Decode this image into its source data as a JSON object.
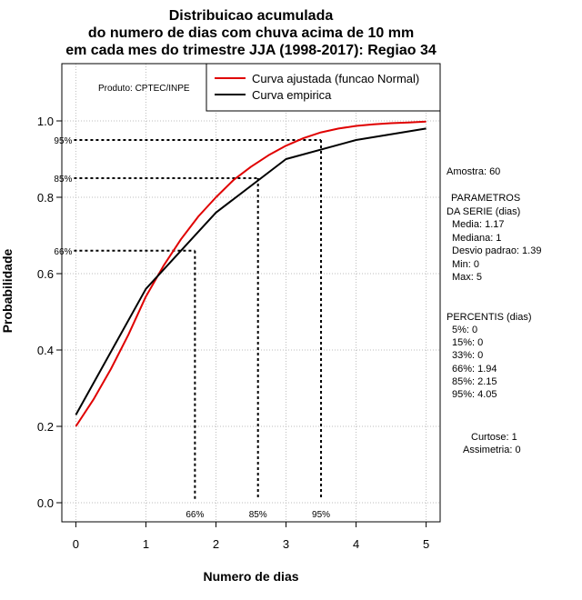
{
  "chart_data": {
    "type": "line",
    "title": [
      "Distribuicao acumulada",
      "do numero de dias com chuva acima de 10 mm",
      "em cada mes do trimestre JJA (1998-2017): Regiao 34"
    ],
    "xlabel": "Numero de dias",
    "ylabel": "Probabilidade",
    "xlim": [
      -0.2,
      5.2
    ],
    "ylim": [
      -0.05,
      1.15
    ],
    "x_ticks": [
      "0",
      "1",
      "2",
      "3",
      "4",
      "5"
    ],
    "y_ticks": [
      "0.0",
      "0.2",
      "0.4",
      "0.6",
      "0.8",
      "1.0"
    ],
    "grid": true,
    "series": [
      {
        "name": "Curva ajustada (funcao Normal)",
        "color": "#e00000",
        "x": [
          0,
          0.25,
          0.5,
          0.75,
          1,
          1.25,
          1.5,
          1.75,
          2,
          2.25,
          2.5,
          2.75,
          3,
          3.25,
          3.5,
          3.75,
          4,
          4.25,
          4.5,
          4.75,
          5
        ],
        "y": [
          0.2,
          0.27,
          0.35,
          0.44,
          0.54,
          0.62,
          0.69,
          0.75,
          0.8,
          0.845,
          0.88,
          0.91,
          0.935,
          0.955,
          0.97,
          0.98,
          0.987,
          0.991,
          0.994,
          0.996,
          0.998
        ]
      },
      {
        "name": "Curva empirica",
        "color": "#000000",
        "x": [
          0,
          1,
          2,
          3,
          4,
          5
        ],
        "y": [
          0.23,
          0.56,
          0.76,
          0.9,
          0.95,
          0.98
        ]
      }
    ],
    "percentile_markers": [
      {
        "label": "66%",
        "x": 1.7,
        "y": 0.66
      },
      {
        "label": "85%",
        "x": 2.6,
        "y": 0.85
      },
      {
        "label": "95%",
        "x": 3.5,
        "y": 0.95
      }
    ],
    "product_label": "Produto: CPTEC/INPE",
    "legend_position": "top-right"
  },
  "stats": {
    "amostra": "Amostra: 60",
    "parametros_title_1": "PARAMETROS",
    "parametros_title_2": "DA SERIE (dias)",
    "media": "Media: 1.17",
    "mediana": "Mediana: 1",
    "desvio": "Desvio padrao: 1.39",
    "min": "Min: 0",
    "max": "Max: 5",
    "percentis_title": "PERCENTIS (dias)",
    "p5": "5%: 0",
    "p15": "15%: 0",
    "p33": "33%: 0",
    "p66": "66%: 1.94",
    "p85": "85%: 2.15",
    "p95": "95%: 4.05",
    "curtose": "Curtose: 1",
    "assimetria": "Assimetria: 0"
  }
}
